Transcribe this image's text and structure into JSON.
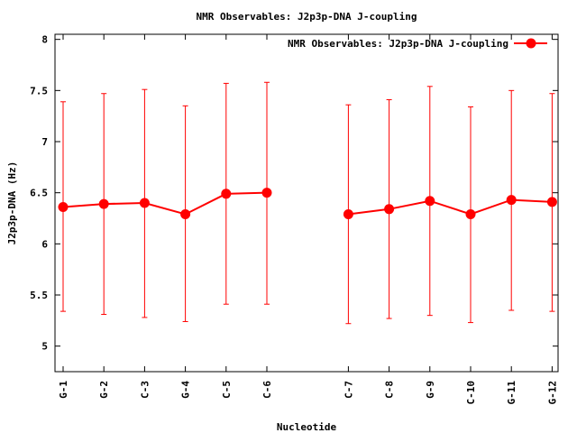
{
  "chart_data": {
    "type": "line",
    "title": "NMR Observables: J2p3p-DNA J-coupling",
    "xlabel": "Nucleotide",
    "ylabel": "J2p3p-DNA (Hz)",
    "ylim": [
      4.75,
      8.05
    ],
    "yticks": [
      5,
      5.5,
      6,
      6.5,
      7,
      7.5,
      8
    ],
    "ytick_labels": [
      "5",
      "5.5",
      "6",
      "6.5",
      "7",
      "7.5",
      "8"
    ],
    "legend_position": "top-right",
    "grid": false,
    "color": "#ff0000",
    "series": [
      {
        "name": "NMR Observables: J2p3p-DNA J-coupling",
        "segments": [
          {
            "x": [
              "G-1",
              "G-2",
              "C-3",
              "G-4",
              "C-5",
              "C-6"
            ],
            "y": [
              6.36,
              6.39,
              6.4,
              6.29,
              6.49,
              6.5
            ],
            "ylow": [
              5.34,
              5.31,
              5.28,
              5.24,
              5.41,
              5.41
            ],
            "yhigh": [
              7.39,
              7.47,
              7.51,
              7.35,
              7.57,
              7.58
            ]
          },
          {
            "x": [
              "C-7",
              "C-8",
              "G-9",
              "C-10",
              "G-11",
              "G-12"
            ],
            "y": [
              6.29,
              6.34,
              6.42,
              6.29,
              6.43,
              6.41
            ],
            "ylow": [
              5.22,
              5.27,
              5.3,
              5.23,
              5.35,
              5.34
            ],
            "yhigh": [
              7.36,
              7.41,
              7.54,
              7.34,
              7.5,
              7.47
            ]
          }
        ]
      }
    ]
  }
}
